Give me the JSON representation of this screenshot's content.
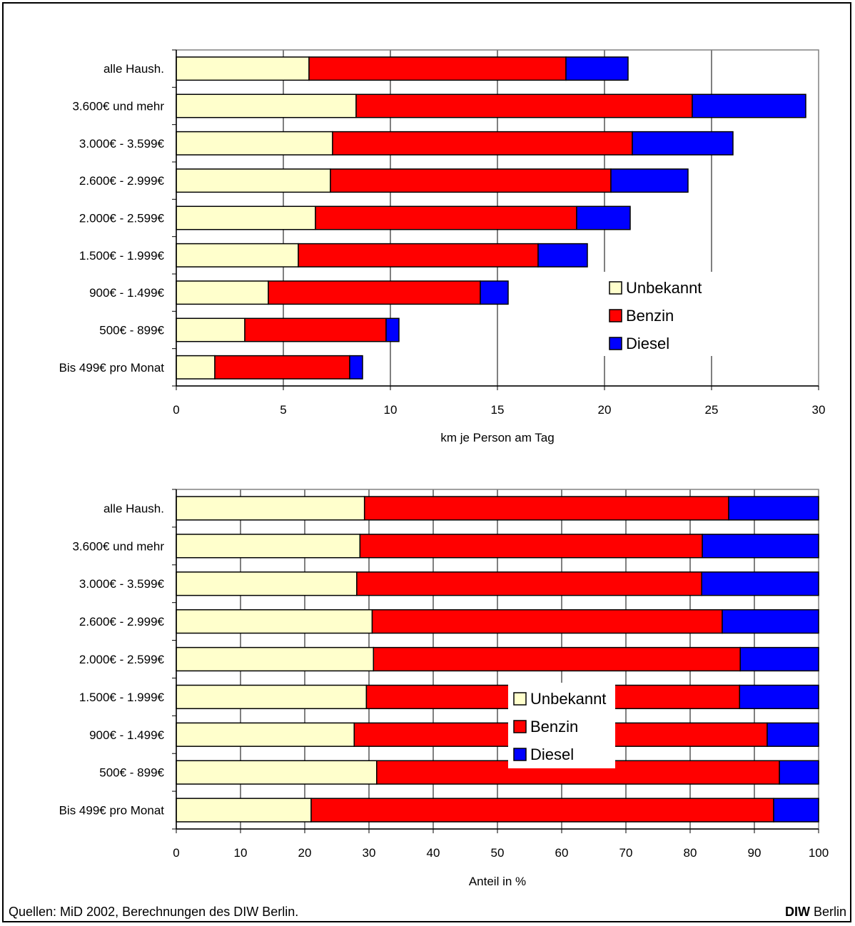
{
  "legend": [
    "Unbekannt",
    "Benzin",
    "Diesel"
  ],
  "colors": {
    "Unbekannt": "#ffffcc",
    "Benzin": "#ff0000",
    "Diesel": "#0000ff"
  },
  "source": "Quellen: MiD 2002, Berechnungen des DIW Berlin.",
  "brand": {
    "bold": "DIW",
    "rest": " Berlin"
  },
  "chart_data": [
    {
      "type": "bar",
      "orientation": "horizontal",
      "stacked": true,
      "categories": [
        "alle Haush.",
        "3.600€ und mehr",
        "3.000€ - 3.599€",
        "2.600€ - 2.999€",
        "2.000€ - 2.599€",
        "1.500€ - 1.999€",
        "900€ - 1.499€",
        "500€ - 899€",
        "Bis 499€ pro Monat"
      ],
      "series": [
        {
          "name": "Unbekannt",
          "values": [
            6.2,
            8.4,
            7.3,
            7.2,
            6.5,
            5.7,
            4.3,
            3.2,
            1.8
          ]
        },
        {
          "name": "Benzin",
          "values": [
            12.0,
            15.7,
            14.0,
            13.1,
            12.2,
            11.2,
            9.9,
            6.6,
            6.3
          ]
        },
        {
          "name": "Diesel",
          "values": [
            2.9,
            5.3,
            4.7,
            3.6,
            2.5,
            2.3,
            1.3,
            0.6,
            0.6
          ]
        }
      ],
      "xlabel": "km je Person am Tag",
      "xlim": [
        0,
        30
      ],
      "xticks": [
        0,
        5,
        10,
        15,
        20,
        25,
        30
      ],
      "grid": "vertical",
      "legend_position": "right-middle"
    },
    {
      "type": "bar",
      "orientation": "horizontal",
      "stacked": true,
      "categories": [
        "alle Haush.",
        "3.600€ und mehr",
        "3.000€ - 3.599€",
        "2.600€ - 2.999€",
        "2.000€ - 2.599€",
        "1.500€ - 1.999€",
        "900€ - 1.499€",
        "500€ - 899€",
        "Bis 499€ pro Monat"
      ],
      "series": [
        {
          "name": "Unbekannt",
          "values": [
            29.3,
            28.6,
            28.1,
            30.5,
            30.7,
            29.6,
            27.7,
            31.2,
            21.0
          ]
        },
        {
          "name": "Benzin",
          "values": [
            56.7,
            53.3,
            53.7,
            54.5,
            57.1,
            58.1,
            64.3,
            62.7,
            72.0
          ]
        },
        {
          "name": "Diesel",
          "values": [
            14.0,
            18.1,
            18.2,
            15.0,
            12.2,
            12.3,
            8.0,
            6.1,
            7.0
          ]
        }
      ],
      "xlabel": "Anteil in %",
      "xlim": [
        0,
        100
      ],
      "xticks": [
        0,
        10,
        20,
        30,
        40,
        50,
        60,
        70,
        80,
        90,
        100
      ],
      "grid": "vertical",
      "legend_position": "center"
    }
  ]
}
